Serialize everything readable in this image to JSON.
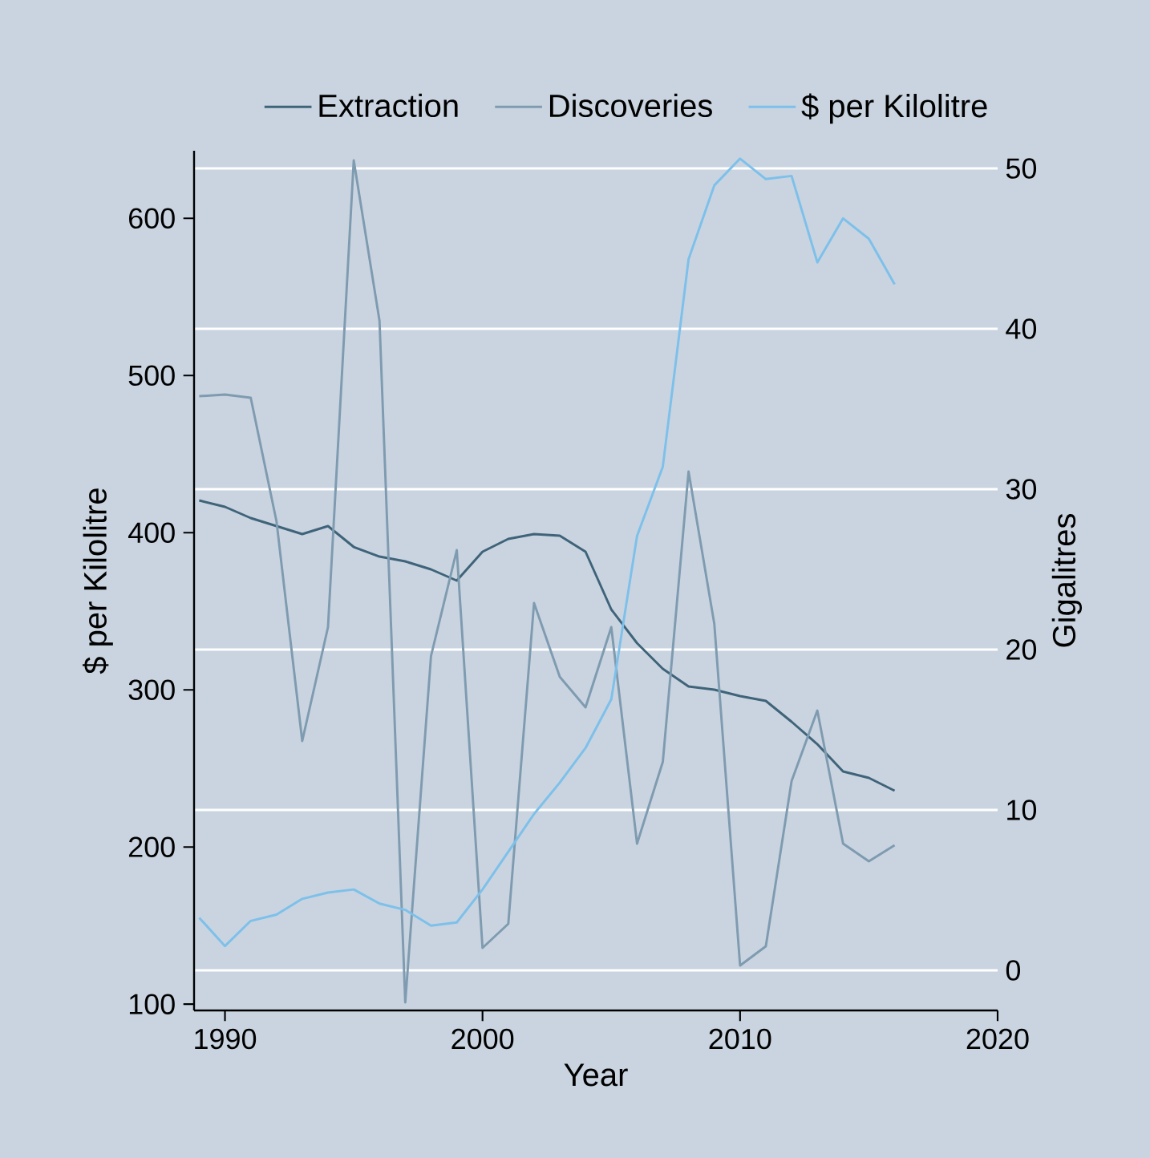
{
  "chart_data": {
    "type": "line",
    "xlabel": "Year",
    "ylabel": "$ per Kilolitre",
    "y2label": "Gigalitres",
    "x": [
      1989,
      1990,
      1991,
      1992,
      1993,
      1994,
      1995,
      1996,
      1997,
      1998,
      1999,
      2000,
      2001,
      2002,
      2003,
      2004,
      2005,
      2006,
      2007,
      2008,
      2009,
      2010,
      2011,
      2012,
      2013,
      2014,
      2015,
      2016
    ],
    "series": [
      {
        "name": "Extraction",
        "color": "#3f6379",
        "axis": "y2",
        "values": [
          29.3,
          28.9,
          28.2,
          27.7,
          27.2,
          27.7,
          26.4,
          25.8,
          25.5,
          25.0,
          24.3,
          26.1,
          26.9,
          27.2,
          27.1,
          26.1,
          22.5,
          20.4,
          18.8,
          17.7,
          17.5,
          17.1,
          16.8,
          15.5,
          14.1,
          12.4,
          12.0,
          11.2
        ]
      },
      {
        "name": "Discoveries",
        "color": "#7f9bb0",
        "axis": "y2",
        "values": [
          35.8,
          35.9,
          35.7,
          28.0,
          14.3,
          21.4,
          50.5,
          40.5,
          -2.0,
          19.6,
          26.2,
          1.4,
          2.9,
          22.9,
          18.3,
          16.4,
          21.4,
          7.9,
          13.0,
          31.1,
          21.6,
          0.3,
          1.5,
          11.8,
          16.2,
          7.9,
          6.8,
          7.8
        ]
      },
      {
        "name": "$ per Kilolitre",
        "color": "#7dc0ea",
        "axis": "y",
        "values": [
          155,
          137,
          153,
          157,
          167,
          171,
          173,
          164,
          160,
          150,
          152,
          173,
          197,
          221,
          241,
          263,
          294,
          398,
          442,
          574,
          621,
          638,
          625,
          627,
          572,
          600,
          587,
          558
        ]
      }
    ],
    "xlim": [
      1988.8,
      2020
    ],
    "xticks": [
      1990,
      2000,
      2010,
      2020
    ],
    "ylim": [
      96,
      643
    ],
    "yticks": [
      100,
      200,
      300,
      400,
      500,
      600
    ],
    "y2lim": [
      -2.5,
      51.1
    ],
    "y2ticks": [
      0,
      10,
      20,
      30,
      40,
      50
    ],
    "grid": "y2",
    "legend": "top",
    "line_style": "solid"
  }
}
